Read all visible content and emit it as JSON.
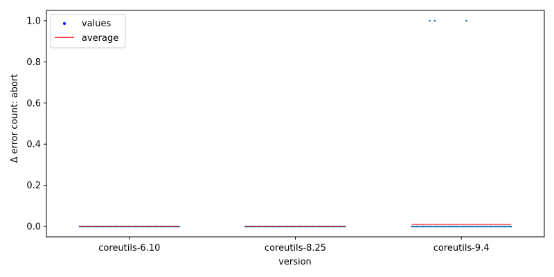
{
  "chart_data": {
    "type": "scatter",
    "xlabel": "version",
    "ylabel": "Δ error count: abort",
    "categories": [
      "coreutils-6.10",
      "coreutils-8.25",
      "coreutils-9.4"
    ],
    "ylim": [
      -0.05,
      1.05
    ],
    "yticks": [
      0.0,
      0.2,
      0.4,
      0.6,
      0.8,
      1.0
    ],
    "ytick_labels": [
      "0.0",
      "0.2",
      "0.4",
      "0.6",
      "0.8",
      "1.0"
    ],
    "grid": false,
    "legend": {
      "placement": "top-left",
      "entries": [
        {
          "label": "values",
          "marker": "dot",
          "color": "#0000ff"
        },
        {
          "label": "average",
          "marker": "line",
          "color": "#ff0000"
        }
      ]
    },
    "colors": {
      "points": "#1f77b4",
      "average": "#ff0000",
      "legend_dot": "#0000ff"
    },
    "series": [
      {
        "category": "coreutils-6.10",
        "baseline_value": 0,
        "average": 0.0,
        "outliers": []
      },
      {
        "category": "coreutils-8.25",
        "baseline_value": 0,
        "average": 0.0,
        "outliers": []
      },
      {
        "category": "coreutils-9.4",
        "baseline_value": 0,
        "average": 0.01,
        "outliers": [
          {
            "jitter": -0.19,
            "value": 1
          },
          {
            "jitter": -0.16,
            "value": 1
          },
          {
            "jitter": 0.03,
            "value": 1
          }
        ]
      }
    ]
  }
}
